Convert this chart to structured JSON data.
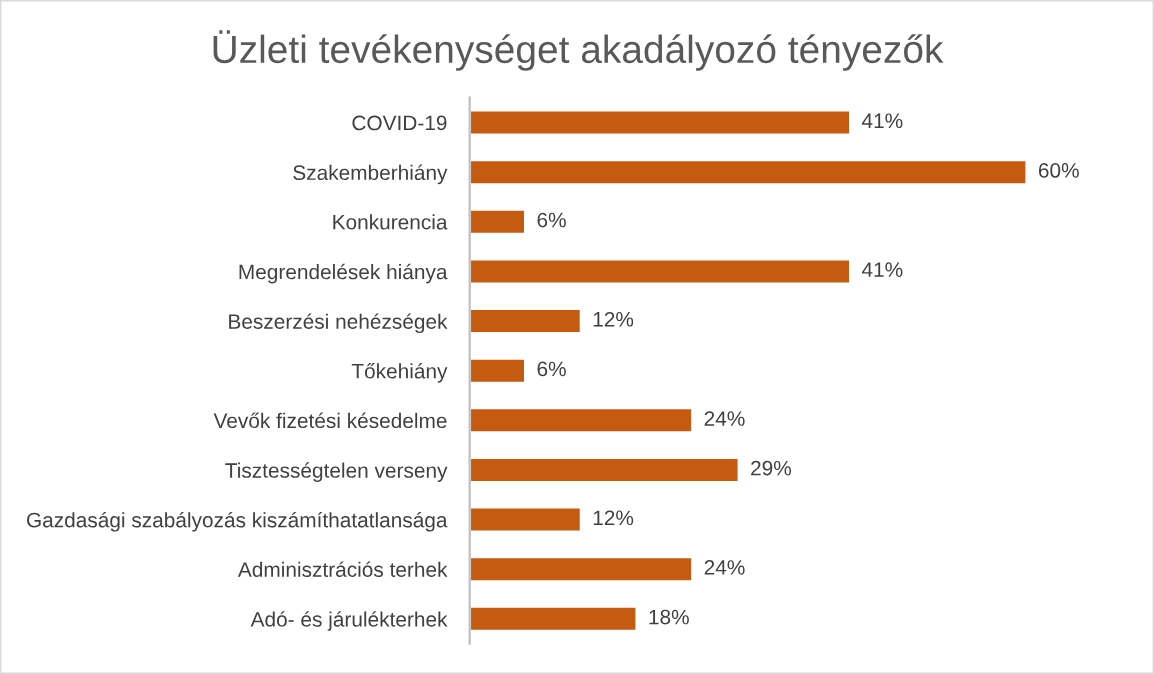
{
  "chart_data": {
    "type": "bar",
    "orientation": "horizontal",
    "title": "Üzleti tevékenységet akadályozó tényezők",
    "categories": [
      "COVID-19",
      "Szakemberhiány",
      "Konkurencia",
      "Megrendelések hiánya",
      "Beszerzési nehézségek",
      "Tőkehiány",
      "Vevők fizetési késedelme",
      "Tisztességtelen verseny",
      "Gazdasági szabályozás kiszámíthatatlansága",
      "Adminisztrációs terhek",
      "Adó- és járulékterhek"
    ],
    "values": [
      41,
      60,
      6,
      41,
      12,
      6,
      24,
      29,
      12,
      24,
      18
    ],
    "value_labels": [
      "41%",
      "60%",
      "6%",
      "41%",
      "12%",
      "6%",
      "24%",
      "29%",
      "12%",
      "24%",
      "18%"
    ],
    "color": "#c55a11",
    "grid": false,
    "legend": false
  }
}
